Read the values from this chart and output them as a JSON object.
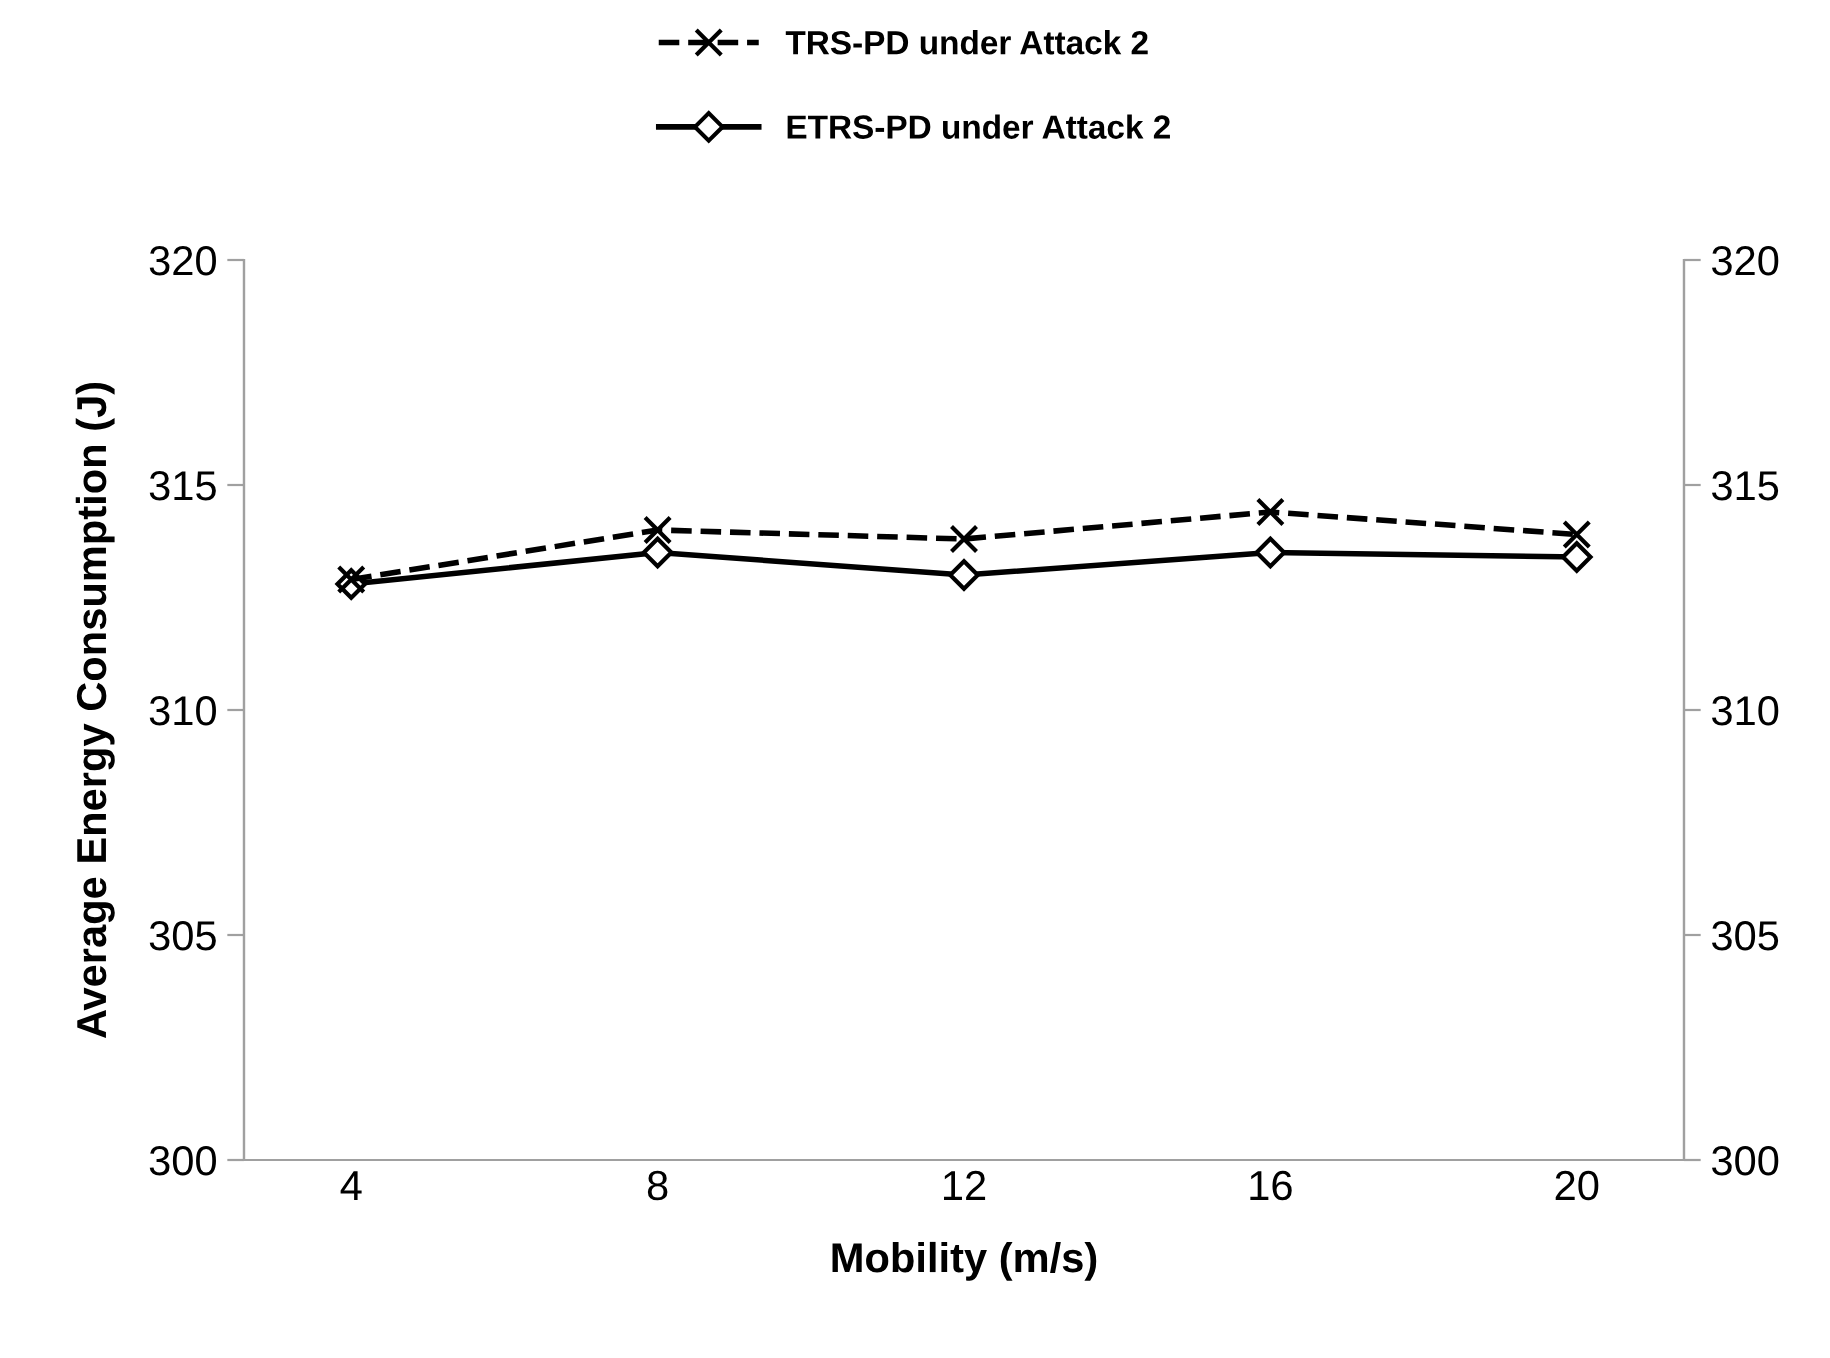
{
  "chart_data": {
    "type": "line",
    "xlabel": "Mobility (m/s)",
    "ylabel": "Average Energy Consumption (J)",
    "categories": [
      "4",
      "8",
      "12",
      "16",
      "20"
    ],
    "series": [
      {
        "name": "TRS-PD under Attack 2",
        "color": "#000000",
        "marker": "cross",
        "line_style": "dashed",
        "values": [
          312.9,
          314.0,
          313.8,
          314.4,
          313.9
        ]
      },
      {
        "name": "ETRS-PD under Attack 2",
        "color": "#000000",
        "marker": "diamond",
        "line_style": "solid",
        "values": [
          312.8,
          313.5,
          313.0,
          313.5,
          313.4
        ]
      }
    ],
    "ylim": [
      300,
      320
    ],
    "yticks": [
      300,
      305,
      310,
      315,
      320
    ],
    "y2lim": [
      300,
      320
    ],
    "y2ticks": [
      300,
      305,
      310,
      315,
      320
    ],
    "grid": false,
    "legend": "top"
  }
}
